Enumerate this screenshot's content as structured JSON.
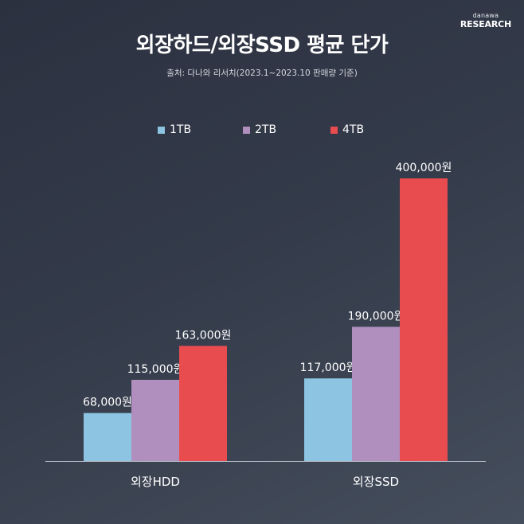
{
  "logo": {
    "small": "danawa",
    "big": "RESEARCH"
  },
  "chart_data": {
    "type": "bar",
    "title": "외장하드/외장SSD 평균 단가",
    "subtitle": "출처: 다나와 리서치(2023.1~2023.10 판매량 기준)",
    "categories": [
      "외장HDD",
      "외장SSD"
    ],
    "series": [
      {
        "name": "1TB",
        "color": "#8cc4e2",
        "values": [
          68000,
          117000
        ],
        "labels": [
          "68,000원",
          "117,000원"
        ]
      },
      {
        "name": "2TB",
        "color": "#b08fbf",
        "values": [
          115000,
          190000
        ],
        "labels": [
          "115,000원",
          "190,000원"
        ]
      },
      {
        "name": "4TB",
        "color": "#e84c4e",
        "values": [
          163000,
          400000
        ],
        "labels": [
          "163,000원",
          "400,000원"
        ]
      }
    ],
    "ylim": [
      0,
      400000
    ],
    "grid": false,
    "legend_position": "top"
  }
}
